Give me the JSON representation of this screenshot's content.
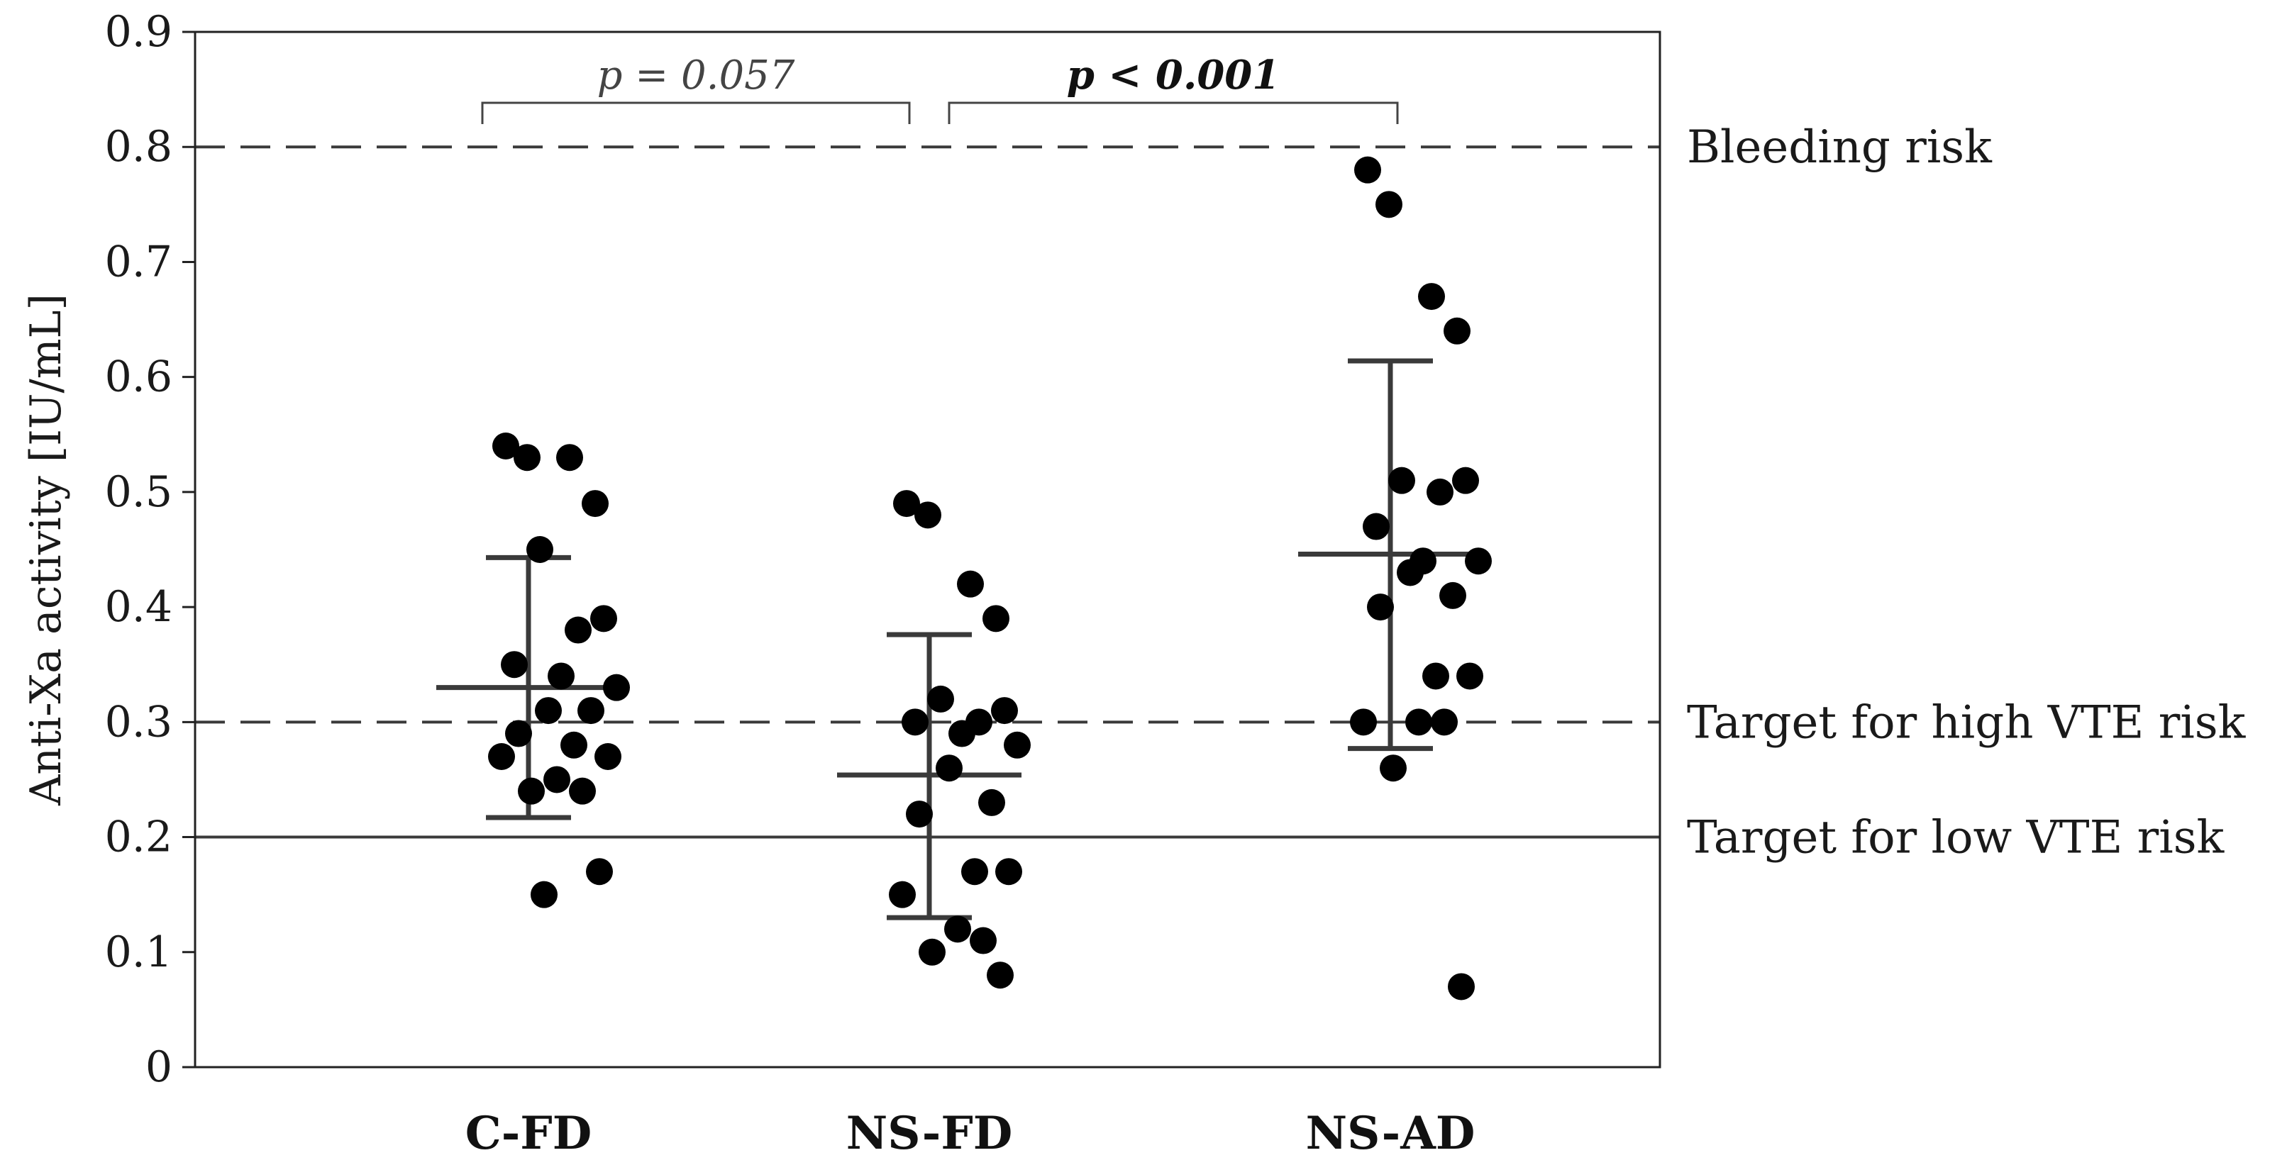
{
  "chart_data": {
    "type": "scatter",
    "categories": [
      "C-FD",
      "NS-FD",
      "NS-AD"
    ],
    "ylabel": "Anti-Xa activity [IU/mL]",
    "ylim": [
      0,
      0.9
    ],
    "yticks": [
      "0",
      "0.1",
      "0.2",
      "0.3",
      "0.4",
      "0.5",
      "0.6",
      "0.7",
      "0.8",
      "0.9"
    ],
    "grid": false,
    "series": [
      {
        "category": "C-FD",
        "values": [
          0.54,
          0.53,
          0.53,
          0.49,
          0.45,
          0.39,
          0.38,
          0.35,
          0.34,
          0.33,
          0.31,
          0.31,
          0.29,
          0.28,
          0.27,
          0.27,
          0.25,
          0.24,
          0.24,
          0.17,
          0.15
        ],
        "mean": 0.33,
        "sd_upper": 0.443,
        "sd_lower": 0.217
      },
      {
        "category": "NS-FD",
        "values": [
          0.49,
          0.48,
          0.42,
          0.39,
          0.32,
          0.31,
          0.3,
          0.3,
          0.29,
          0.28,
          0.26,
          0.23,
          0.22,
          0.17,
          0.17,
          0.15,
          0.12,
          0.11,
          0.1,
          0.08
        ],
        "mean": 0.254,
        "sd_upper": 0.376,
        "sd_lower": 0.13
      },
      {
        "category": "NS-AD",
        "values": [
          0.78,
          0.75,
          0.67,
          0.64,
          0.51,
          0.51,
          0.5,
          0.47,
          0.44,
          0.44,
          0.43,
          0.41,
          0.4,
          0.34,
          0.34,
          0.3,
          0.3,
          0.3,
          0.26,
          0.07
        ],
        "mean": 0.446,
        "sd_upper": 0.614,
        "sd_lower": 0.277
      }
    ],
    "reference_lines": [
      {
        "y": 0.8,
        "style": "dashed",
        "label": "Bleeding risk"
      },
      {
        "y": 0.3,
        "style": "dashed",
        "label": "Target for high VTE risk"
      },
      {
        "y": 0.2,
        "style": "solid",
        "label": "Target for low VTE risk"
      }
    ],
    "comparisons": [
      {
        "from": "C-FD",
        "to": "NS-FD",
        "label": "p = 0.057",
        "bold": false
      },
      {
        "from": "NS-FD",
        "to": "NS-AD",
        "label": "p < 0.001",
        "bold": true
      }
    ],
    "colors": {
      "points": "#000000",
      "error_bars": "#3a3a3a",
      "reference": "#3a3a3a",
      "axes": "#222222"
    }
  }
}
